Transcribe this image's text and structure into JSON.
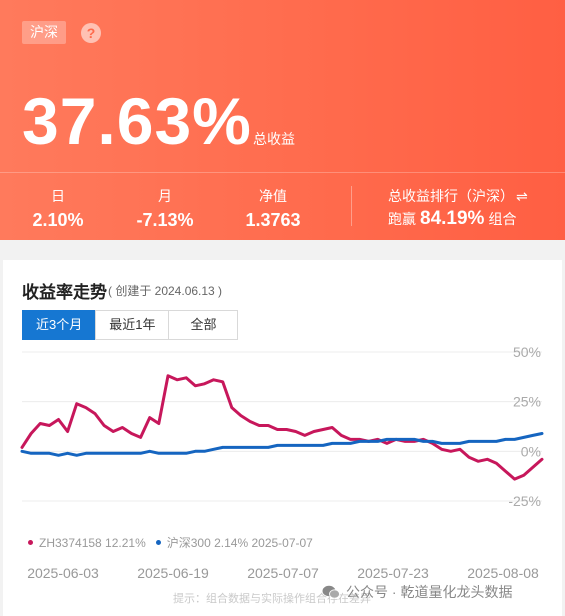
{
  "header": {
    "market_tag": "沪深",
    "help_icon": "?",
    "total_return": "37.63%",
    "total_return_label": "总收益",
    "stats": [
      {
        "label": "日",
        "value": "2.10%"
      },
      {
        "label": "月",
        "value": "-7.13%"
      },
      {
        "label": "净值",
        "value": "1.3763"
      }
    ],
    "rank": {
      "label": "总收益排行（沪深）",
      "swap_icon": "⇌",
      "prefix": "跑赢",
      "value": "84.19%",
      "suffix": "组合"
    }
  },
  "card": {
    "title": "收益率走势",
    "subtitle": "( 创建于 2024.06.13 )",
    "tabs": [
      {
        "label": "近3个月",
        "active": true
      },
      {
        "label": "最近1年",
        "active": false
      },
      {
        "label": "全部",
        "active": false
      }
    ],
    "legend": [
      {
        "text": "ZH3374158 12.21%",
        "color": "#c7175b"
      },
      {
        "text": "沪深300 2.14% 2025-07-07",
        "color": "#1565c0"
      }
    ],
    "tip": "提示：组合数据与实际操作组合存在差异"
  },
  "watermark": "公众号 · 乾道量化龙头数据",
  "colors": {
    "accent": "#ff6a4c",
    "portfolio": "#c7175b",
    "benchmark": "#1565c0",
    "tab_active": "#1677d2"
  },
  "chart_data": {
    "type": "line",
    "y_ticks": [
      "50%",
      "25%",
      "0%",
      "-25%"
    ],
    "y_tick_values": [
      50,
      25,
      0,
      -25
    ],
    "ylim": [
      -25,
      50
    ],
    "x_ticks": [
      "2025-06-03",
      "2025-06-19",
      "2025-07-07",
      "2025-07-23",
      "2025-08-08"
    ],
    "grid": true,
    "series": [
      {
        "name": "ZH3374158",
        "values": [
          2,
          9,
          14,
          13,
          16,
          10,
          24,
          22,
          19,
          13,
          10,
          12,
          9,
          7,
          17,
          14,
          38,
          36,
          37,
          33,
          34,
          36,
          35,
          22,
          18,
          15,
          13,
          13,
          11,
          11,
          10,
          8,
          10,
          11,
          12,
          8,
          6,
          6,
          5,
          6,
          4,
          6,
          5,
          5,
          6,
          4,
          1,
          0,
          1,
          -3,
          -5,
          -4,
          -6,
          -10,
          -14,
          -12,
          -8,
          -4
        ]
      },
      {
        "name": "沪深300",
        "values": [
          0,
          -1,
          -1,
          -1,
          -2,
          -1,
          -2,
          -1,
          -1,
          -1,
          -1,
          -1,
          -1,
          -1,
          0,
          -1,
          -1,
          -1,
          -1,
          0,
          0,
          1,
          2,
          2,
          2,
          2,
          2,
          2,
          3,
          3,
          3,
          3,
          3,
          3,
          4,
          4,
          4,
          5,
          5,
          5,
          6,
          6,
          6,
          6,
          5,
          5,
          4,
          4,
          4,
          5,
          5,
          5,
          5,
          6,
          6,
          7,
          8,
          9
        ]
      }
    ]
  }
}
